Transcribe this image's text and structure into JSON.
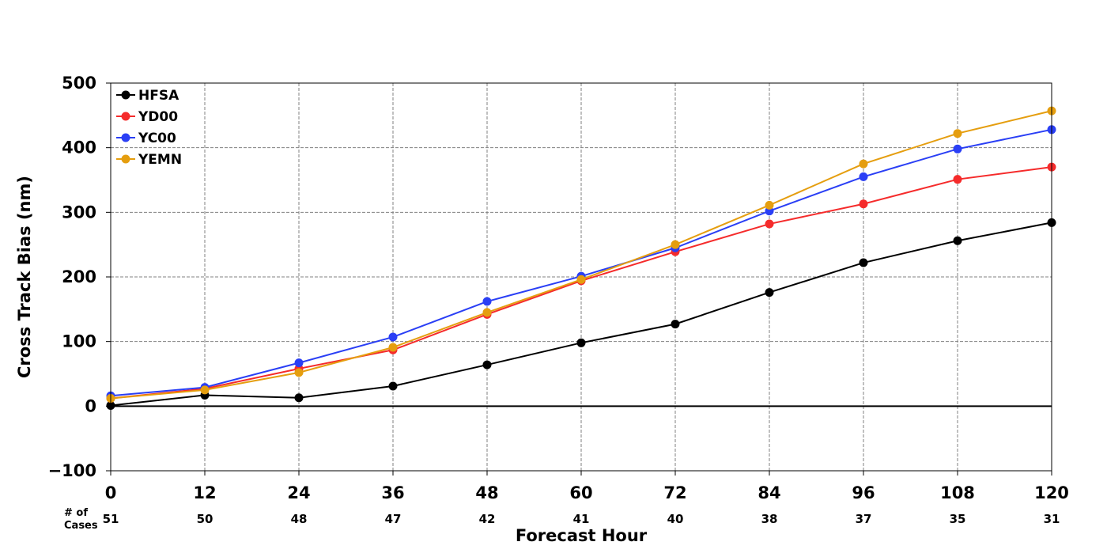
{
  "chart_data": {
    "type": "line",
    "title": "",
    "xlabel": "Forecast Hour",
    "ylabel": "Cross Track Bias (nm)",
    "x": [
      0,
      12,
      24,
      36,
      48,
      60,
      72,
      84,
      96,
      108,
      120
    ],
    "xlim": [
      0,
      120
    ],
    "ylim": [
      -100,
      500
    ],
    "x_ticks": [
      "0",
      "12",
      "24",
      "36",
      "48",
      "60",
      "72",
      "84",
      "96",
      "108",
      "120"
    ],
    "y_ticks": [
      "−100",
      "0",
      "100",
      "200",
      "300",
      "400",
      "500"
    ],
    "y_tick_values": [
      -100,
      0,
      100,
      200,
      300,
      400,
      500
    ],
    "grid": true,
    "zero_line": true,
    "legend_position": "top-left",
    "cases_header_line1": "# of",
    "cases_header_line2": "Cases",
    "cases": [
      "51",
      "50",
      "48",
      "47",
      "42",
      "41",
      "40",
      "38",
      "37",
      "35",
      "31"
    ],
    "series": [
      {
        "name": "HFSA",
        "color": "#000000",
        "values": [
          1,
          17,
          13,
          31,
          64,
          98,
          127,
          176,
          222,
          256,
          284
        ]
      },
      {
        "name": "YD00",
        "color": "#f52b2b",
        "values": [
          12,
          27,
          58,
          87,
          142,
          194,
          239,
          282,
          313,
          351,
          370
        ]
      },
      {
        "name": "YC00",
        "color": "#2a3ff5",
        "values": [
          16,
          29,
          67,
          107,
          162,
          201,
          245,
          302,
          355,
          398,
          428
        ]
      },
      {
        "name": "YEMN",
        "color": "#e59e0f",
        "values": [
          12,
          25,
          52,
          91,
          145,
          196,
          250,
          311,
          375,
          422,
          457
        ]
      }
    ]
  }
}
